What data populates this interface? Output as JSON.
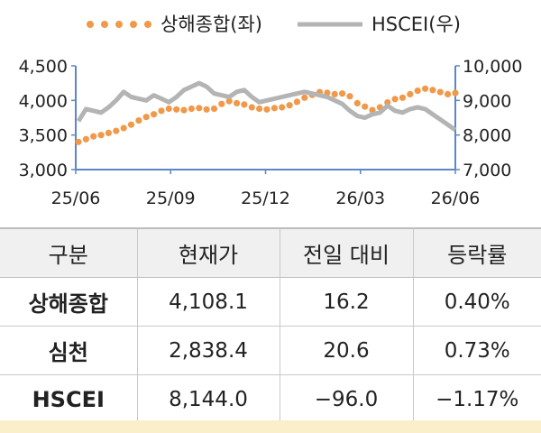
{
  "chart_data": {
    "type": "line",
    "legend_position": "top",
    "x_ticks": [
      "25/06",
      "25/09",
      "25/12",
      "26/03",
      "26/06"
    ],
    "left_axis": {
      "ticks": [
        "3,000",
        "3,500",
        "4,000",
        "4,500"
      ],
      "range": [
        3000,
        4500
      ]
    },
    "right_axis": {
      "ticks": [
        "7,000",
        "8,000",
        "9,000",
        "10,000"
      ],
      "range": [
        7000,
        10000
      ]
    },
    "series": [
      {
        "name": "상해종합(좌)",
        "style": "dotted",
        "color": "#f0994a",
        "axis": "left",
        "values": [
          3400,
          3440,
          3480,
          3500,
          3530,
          3560,
          3600,
          3650,
          3710,
          3760,
          3800,
          3850,
          3880,
          3870,
          3860,
          3880,
          3890,
          3870,
          3880,
          3950,
          3990,
          3960,
          3940,
          3900,
          3880,
          3870,
          3890,
          3900,
          3930,
          3980,
          4040,
          4080,
          4120,
          4110,
          4090,
          4100,
          4060,
          3960,
          3910,
          3860,
          3900,
          3970,
          4020,
          4040,
          4090,
          4140,
          4170,
          4150,
          4120,
          4090,
          4108
        ]
      },
      {
        "name": "HSCEI(우)",
        "style": "solid",
        "color": "#b4b4b4",
        "axis": "right",
        "values": [
          8400,
          8750,
          8700,
          8650,
          8800,
          9000,
          9250,
          9100,
          9050,
          9000,
          9150,
          9050,
          8950,
          9100,
          9300,
          9400,
          9500,
          9400,
          9200,
          9150,
          9100,
          9250,
          9300,
          9100,
          8950,
          9000,
          9050,
          9100,
          9150,
          9200,
          9250,
          9200,
          9150,
          9100,
          9000,
          8900,
          8700,
          8550,
          8500,
          8600,
          8650,
          8850,
          8700,
          8650,
          8750,
          8800,
          8750,
          8600,
          8450,
          8300,
          8144
        ]
      }
    ]
  },
  "table": {
    "headers": [
      "구분",
      "현재가",
      "전일 대비",
      "등락률"
    ],
    "rows": [
      [
        "상해종합",
        "4,108.1",
        "16.2",
        "0.40%"
      ],
      [
        "심천",
        "2,838.4",
        "20.6",
        "0.73%"
      ],
      [
        "HSCEI",
        "8,144.0",
        "−96.0",
        "−1.17%"
      ]
    ]
  },
  "colors": {
    "header_bg": "#f0f0f0",
    "footer_strip": "#fbeecb",
    "axis_line": "#5b87c5"
  }
}
